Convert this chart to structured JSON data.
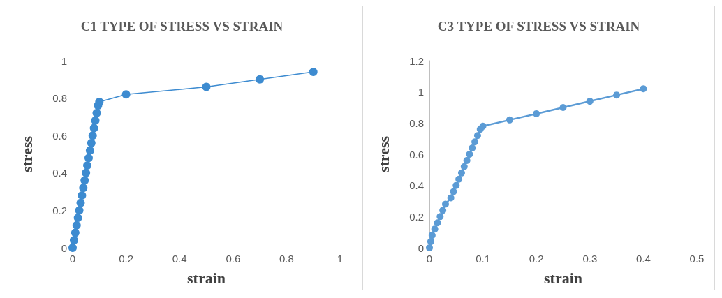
{
  "chart_data": [
    {
      "type": "line",
      "title": "C1 TYPE OF STRESS VS STRAIN",
      "xlabel": "strain",
      "ylabel": "stress",
      "marker": "circle",
      "line_style": "solid",
      "series": [
        {
          "color": "#3d8bd0",
          "x": [
            0,
            0.005,
            0.01,
            0.015,
            0.02,
            0.025,
            0.03,
            0.035,
            0.04,
            0.045,
            0.05,
            0.055,
            0.06,
            0.065,
            0.07,
            0.075,
            0.08,
            0.085,
            0.09,
            0.095,
            0.1,
            0.2,
            0.5,
            0.7,
            0.9
          ],
          "values": [
            0,
            0.04,
            0.08,
            0.12,
            0.16,
            0.2,
            0.24,
            0.28,
            0.32,
            0.36,
            0.4,
            0.44,
            0.48,
            0.52,
            0.56,
            0.6,
            0.64,
            0.68,
            0.72,
            0.76,
            0.78,
            0.82,
            0.86,
            0.9,
            0.94
          ]
        }
      ],
      "xlim": [
        0,
        1
      ],
      "xticks": [
        0,
        0.2,
        0.4,
        0.6,
        0.8,
        1
      ],
      "ylim": [
        0,
        1
      ],
      "yticks": [
        0,
        0.2,
        0.4,
        0.6,
        0.8,
        1
      ]
    },
    {
      "type": "line",
      "title": "C3 TYPE OF STRESS VS STRAIN",
      "xlabel": "strain",
      "ylabel": "stress",
      "marker": "circle",
      "line_style": "solid",
      "series": [
        {
          "color": "#5b9bd5",
          "x": [
            0,
            0.0025,
            0.005,
            0.01,
            0.015,
            0.02,
            0.025,
            0.03,
            0.04,
            0.045,
            0.05,
            0.055,
            0.06,
            0.065,
            0.07,
            0.075,
            0.08,
            0.085,
            0.09,
            0.095,
            0.1,
            0.15,
            0.2,
            0.25,
            0.3,
            0.35,
            0.4
          ],
          "values": [
            0,
            0.04,
            0.08,
            0.12,
            0.16,
            0.2,
            0.24,
            0.28,
            0.32,
            0.36,
            0.4,
            0.44,
            0.48,
            0.52,
            0.56,
            0.6,
            0.64,
            0.68,
            0.72,
            0.76,
            0.78,
            0.82,
            0.86,
            0.9,
            0.94,
            0.98,
            1.02
          ]
        }
      ],
      "xlim": [
        0,
        0.5
      ],
      "xticks": [
        0,
        0.1,
        0.2,
        0.3,
        0.4,
        0.5
      ],
      "ylim": [
        0,
        1.2
      ],
      "yticks": [
        0,
        0.2,
        0.4,
        0.6,
        0.8,
        1,
        1.2
      ]
    }
  ]
}
